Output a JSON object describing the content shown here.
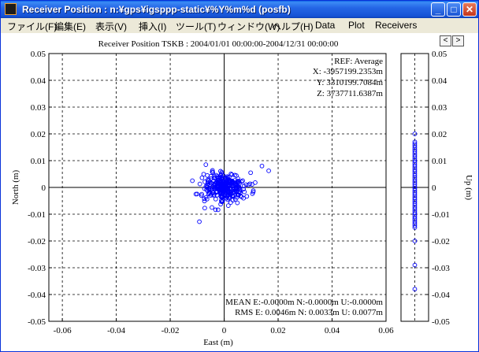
{
  "window": {
    "title": "Receiver Position : n:¥gps¥igsppp-static¥%Y%m%d (posfb)",
    "minimize_glyph": "_",
    "maximize_glyph": "□",
    "close_glyph": "✕"
  },
  "menu": [
    "ファイル(F)",
    "編集(E)",
    "表示(V)",
    "挿入(I)",
    "ツール(T)",
    "ウィンドウ(W)",
    "ヘルプ(H)",
    "Data",
    "Plot",
    "Receivers"
  ],
  "nav": {
    "prev": "<",
    "next": ">"
  },
  "chart_data": [
    {
      "type": "scatter",
      "title": "Receiver Position TSKB  : 2004/01/01 00:00:00-2004/12/31 00:00:00",
      "xlabel": "East (m)",
      "ylabel": "North (m)",
      "xlim": [
        -0.065,
        0.06
      ],
      "ylim": [
        -0.05,
        0.05
      ],
      "xticks": [
        "-0.06",
        "-0.04",
        "-0.02",
        "0",
        "0.02",
        "0.04",
        "0.06"
      ],
      "yticks": [
        "0.05",
        "0.04",
        "0.03",
        "0.02",
        "0.01",
        "0",
        "-0.01",
        "-0.02",
        "-0.03",
        "-0.04",
        "-0.05"
      ],
      "grid": true,
      "marker_color": "#0000ff",
      "outliers": [
        {
          "x": 0.014,
          "y": 0.008
        },
        {
          "x": 0.0165,
          "y": 0.0062
        },
        {
          "x": -0.0092,
          "y": -0.0128
        },
        {
          "x": -0.0105,
          "y": -0.0025
        },
        {
          "x": -0.0118,
          "y": 0.0025
        },
        {
          "x": -0.0068,
          "y": 0.0085
        },
        {
          "x": 0.0115,
          "y": 0.0018
        },
        {
          "x": 0.0108,
          "y": -0.0012
        },
        {
          "x": 0.0098,
          "y": 0.0055
        }
      ],
      "cluster": {
        "n": 320,
        "mean_x": 0.0,
        "mean_y": 0.0,
        "sd_x": 0.0038,
        "sd_y": 0.0027
      },
      "annotations": {
        "ref": "REF: Average",
        "x": "X: -3957199.2353m",
        "y": "Y:  3310199.7084m",
        "z": "Z:  3737711.6387m",
        "mean": "MEAN E:-0.0000m N:-0.0000m U:-0.0000m",
        "rms": "RMS  E: 0.0046m N: 0.0033m U: 0.0077m"
      }
    },
    {
      "type": "scatter",
      "ylabel": "Up (m)",
      "ylim": [
        -0.05,
        0.05
      ],
      "yticks": [
        "0.05",
        "0.04",
        "0.03",
        "0.02",
        "0.01",
        "0",
        "-0.01",
        "-0.02",
        "-0.03",
        "-0.04",
        "-0.05"
      ],
      "grid": true,
      "marker_color": "#0000ff",
      "range_dense": [
        -0.015,
        0.017
      ],
      "outliers": [
        0.02,
        -0.02,
        -0.029,
        -0.038
      ]
    }
  ]
}
